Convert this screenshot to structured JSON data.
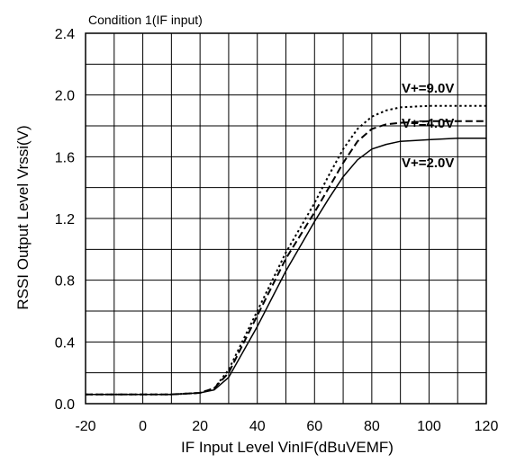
{
  "chart_data": {
    "type": "line",
    "title": "",
    "annotation": "Condition 1(IF input)",
    "xlabel": "IF Input Level VinIF(dBuVEMF)",
    "ylabel": "RSSI Output Level Vrssi(V)",
    "xlim": [
      -20,
      120
    ],
    "ylim": [
      0.0,
      2.4
    ],
    "x_ticks": [
      -20,
      0,
      20,
      40,
      60,
      80,
      100,
      120
    ],
    "x_tick_labels": [
      "-20",
      "0",
      "20",
      "40",
      "60",
      "80",
      "100",
      "120"
    ],
    "y_ticks": [
      0.0,
      0.4,
      0.8,
      1.2,
      1.6,
      2.0,
      2.4
    ],
    "y_tick_labels": [
      "0.0",
      "0.4",
      "0.8",
      "1.2",
      "1.6",
      "2.0",
      "2.4"
    ],
    "grid": true,
    "grid_x_step": 10,
    "grid_y_step": 0.2,
    "series": [
      {
        "name": "V+=9.0V",
        "style": "dotted",
        "x": [
          -20,
          0,
          10,
          20,
          25,
          30,
          40,
          50,
          60,
          65,
          70,
          75,
          80,
          85,
          90,
          100,
          110,
          120
        ],
        "y": [
          0.06,
          0.06,
          0.06,
          0.07,
          0.1,
          0.22,
          0.6,
          0.98,
          1.3,
          1.48,
          1.65,
          1.78,
          1.86,
          1.9,
          1.92,
          1.93,
          1.93,
          1.93
        ]
      },
      {
        "name": "V+=4.0V",
        "style": "dashed",
        "x": [
          -20,
          0,
          10,
          20,
          25,
          30,
          40,
          50,
          60,
          65,
          70,
          75,
          80,
          85,
          90,
          100,
          110,
          120
        ],
        "y": [
          0.06,
          0.06,
          0.06,
          0.07,
          0.1,
          0.2,
          0.57,
          0.94,
          1.24,
          1.4,
          1.56,
          1.7,
          1.78,
          1.81,
          1.82,
          1.83,
          1.83,
          1.83
        ]
      },
      {
        "name": "V+=2.0V",
        "style": "solid",
        "x": [
          -20,
          0,
          10,
          20,
          25,
          30,
          40,
          50,
          60,
          65,
          70,
          75,
          80,
          85,
          90,
          100,
          110,
          120
        ],
        "y": [
          0.06,
          0.06,
          0.06,
          0.07,
          0.09,
          0.17,
          0.5,
          0.86,
          1.18,
          1.33,
          1.47,
          1.58,
          1.65,
          1.68,
          1.7,
          1.71,
          1.72,
          1.72
        ]
      }
    ]
  }
}
